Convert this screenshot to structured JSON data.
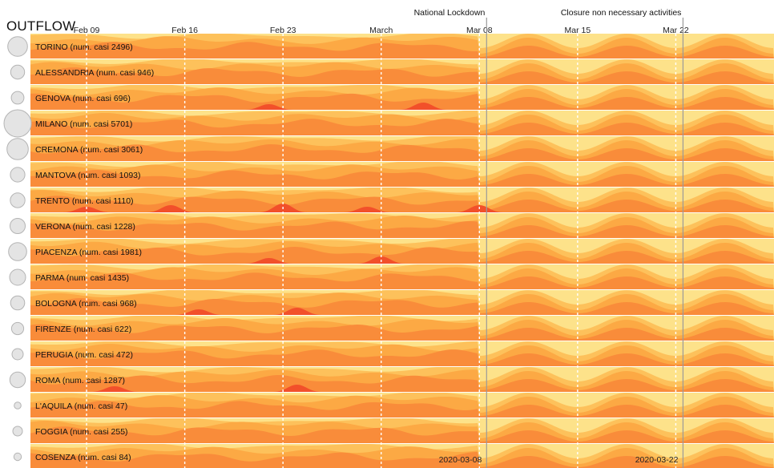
{
  "title": "OUTFLOW",
  "colors": {
    "band_light": "#fde28a",
    "band_pale": "#fdc15b",
    "band_mid": "#fca944",
    "band_dark": "#f98c3a",
    "band_red": "#f2502a",
    "row_divider": "#ffffff",
    "tick_line": "#ffffff",
    "event_line": "#9a9a9a",
    "circle_fill": "#e4e4e4",
    "circle_stroke": "#b4b4b4"
  },
  "chart_data": {
    "type": "area",
    "chart_subtype": "horizon-streamgraph-rows",
    "x_domain": [
      "2020-02-05",
      "2020-03-29"
    ],
    "x_ticks": [
      {
        "date": "2020-02-09",
        "label": "Feb 09"
      },
      {
        "date": "2020-02-16",
        "label": "Feb 16"
      },
      {
        "date": "2020-02-23",
        "label": "Feb 23"
      },
      {
        "date": "2020-03-01",
        "label": "March"
      },
      {
        "date": "2020-03-08",
        "label": "Mar 08"
      },
      {
        "date": "2020-03-15",
        "label": "Mar 15"
      },
      {
        "date": "2020-03-22",
        "label": "Mar 22"
      }
    ],
    "events": [
      {
        "date": "2020-03-08",
        "label": "National Lockdown",
        "bottom_label": "2020-03-08"
      },
      {
        "date": "2020-03-22",
        "label": "Closure non necessary activities",
        "bottom_label": "2020-03-22"
      }
    ],
    "rows": [
      {
        "name": "TORINO (num. casi 2496)",
        "cases": 2496,
        "red_bursts": []
      },
      {
        "name": "ALESSANDRIA (num. casi 946)",
        "cases": 946,
        "red_bursts": []
      },
      {
        "name": "GENOVA (num. casi 696)",
        "cases": 696,
        "red_bursts": [
          "2020-02-22",
          "2020-03-04"
        ]
      },
      {
        "name": "MILANO (num. casi 5701)",
        "cases": 5701,
        "red_bursts": []
      },
      {
        "name": "CREMONA (num. casi 3061)",
        "cases": 3061,
        "red_bursts": []
      },
      {
        "name": "MANTOVA (num. casi 1093)",
        "cases": 1093,
        "red_bursts": []
      },
      {
        "name": "TRENTO (num. casi 1110)",
        "cases": 1110,
        "red_bursts": [
          "2020-02-09",
          "2020-02-15",
          "2020-02-23",
          "2020-02-29",
          "2020-03-08"
        ]
      },
      {
        "name": "VERONA (num. casi 1228)",
        "cases": 1228,
        "red_bursts": []
      },
      {
        "name": "PIACENZA (num. casi 1981)",
        "cases": 1981,
        "red_bursts": [
          "2020-02-22",
          "2020-03-01"
        ]
      },
      {
        "name": "PARMA (num. casi 1435)",
        "cases": 1435,
        "red_bursts": []
      },
      {
        "name": "BOLOGNA (num. casi 968)",
        "cases": 968,
        "red_bursts": [
          "2020-02-17",
          "2020-02-24"
        ]
      },
      {
        "name": "FIRENZE (num. casi 622)",
        "cases": 622,
        "red_bursts": []
      },
      {
        "name": "PERUGIA (num. casi 472)",
        "cases": 472,
        "red_bursts": []
      },
      {
        "name": "ROMA (num. casi 1287)",
        "cases": 1287,
        "red_bursts": [
          "2020-02-11",
          "2020-02-24"
        ]
      },
      {
        "name": "L'AQUILA (num. casi 47)",
        "cases": 47,
        "red_bursts": []
      },
      {
        "name": "FOGGIA (num. casi 255)",
        "cases": 255,
        "red_bursts": []
      },
      {
        "name": "COSENZA (num. casi 84)",
        "cases": 84,
        "red_bursts": []
      }
    ]
  }
}
